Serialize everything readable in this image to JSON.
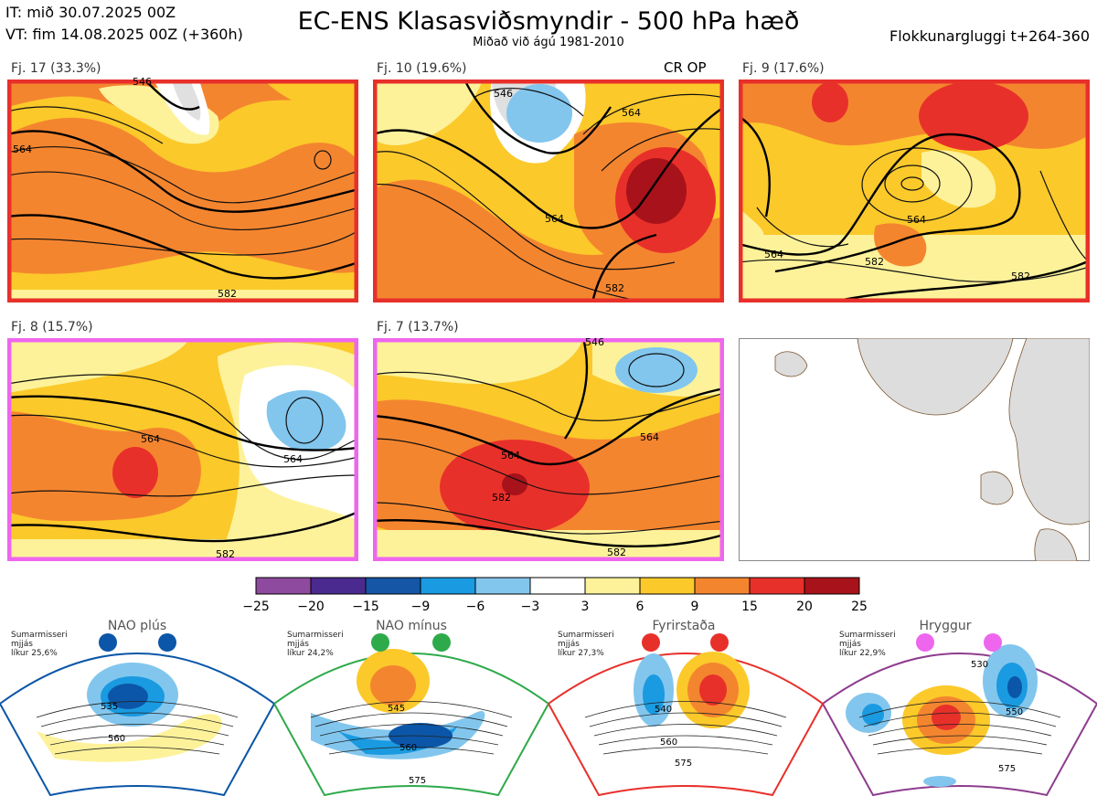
{
  "header": {
    "initial_time": "IT: mið 30.07.2025 00Z",
    "valid_time": "VT: fim 14.08.2025 00Z  (+360h)",
    "title": "EC-ENS Klasasviðsmyndir - 500 hPa hæð",
    "subtitle": "Miðað við ágú 1981-2010",
    "window": "Flokkunargluggi t+264-360"
  },
  "panels": [
    {
      "label": "Fj. 17 (33.3%)",
      "extra": "",
      "border": "#e8302a",
      "contours": [
        "564",
        "546",
        "582"
      ]
    },
    {
      "label": "Fj. 10 (19.6%)",
      "extra": "CR OP",
      "border": "#e8302a",
      "contours": [
        "564",
        "546",
        "564",
        "582"
      ]
    },
    {
      "label": "Fj. 9 (17.6%)",
      "extra": "",
      "border": "#e8302a",
      "contours": [
        "564",
        "582",
        "564",
        "582"
      ]
    },
    {
      "label": "Fj. 8 (15.7%)",
      "extra": "",
      "border": "#ee66ee",
      "contours": [
        "564",
        "564",
        "582"
      ]
    },
    {
      "label": "Fj. 7 (13.7%)",
      "extra": "",
      "border": "#ee66ee",
      "contours": [
        "564",
        "582",
        "564",
        "582",
        "546"
      ]
    }
  ],
  "chart_data": {
    "type": "heatmap",
    "title": "EC-ENS Klasasviðsmyndir - 500 hPa hæð",
    "colorbar": {
      "ticks": [
        "−25",
        "−20",
        "−15",
        "−9",
        "−6",
        "−3",
        "3",
        "6",
        "9",
        "15",
        "20",
        "25"
      ],
      "bounds": [
        -25,
        -20,
        -15,
        -9,
        -6,
        -3,
        3,
        6,
        9,
        15,
        20,
        25
      ],
      "colors": [
        "#8e4a9e",
        "#4b2a8f",
        "#1556a6",
        "#1a9ae0",
        "#82c6ee",
        "#ffffff",
        "#fdf29a",
        "#fbc92a",
        "#f4852f",
        "#e8302a",
        "#a8121a"
      ]
    }
  },
  "regimes": [
    {
      "name": "NAO plús",
      "text1": "Sumarmisseri",
      "text2": "mjjás",
      "text3": "líkur 25,6%",
      "color": "#0b56a8",
      "labels": [
        "535",
        "560"
      ]
    },
    {
      "name": "NAO mínus",
      "text1": "Sumarmisseri",
      "text2": "mjjás",
      "text3": "líkur 24,2%",
      "color": "#2eaa4a",
      "labels": [
        "545",
        "560",
        "575"
      ]
    },
    {
      "name": "Fyrirstaða",
      "text1": "Sumarmisseri",
      "text2": "mjjás",
      "text3": "líkur 27,3%",
      "color": "#e8302a",
      "labels": [
        "540",
        "560",
        "575"
      ]
    },
    {
      "name": "Hryggur",
      "text1": "Sumarmisseri",
      "text2": "mjjás",
      "text3": "líkur 22,9%",
      "color": "#8e3d8e",
      "labels": [
        "530",
        "550",
        "575"
      ]
    }
  ]
}
